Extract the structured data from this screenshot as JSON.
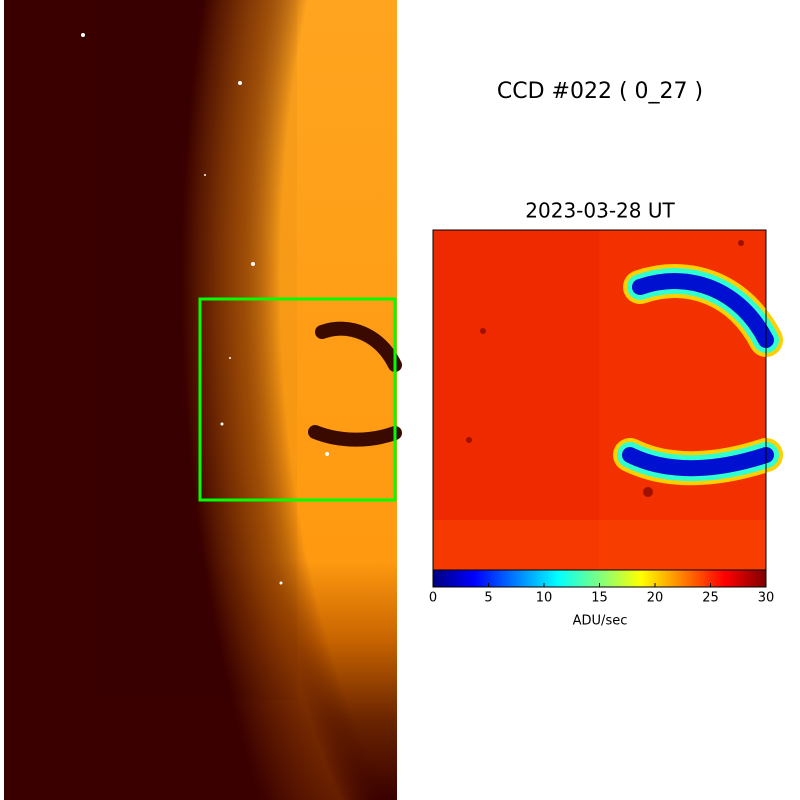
{
  "title": "CCD #022 ( 0_27 )",
  "panel_title": "2023-03-28 UT",
  "colorbar": {
    "label": "ADU/sec",
    "lim": [
      0,
      30
    ],
    "ticks": [
      0,
      5,
      10,
      15,
      20,
      25,
      30
    ],
    "colormap": "jet"
  }
}
